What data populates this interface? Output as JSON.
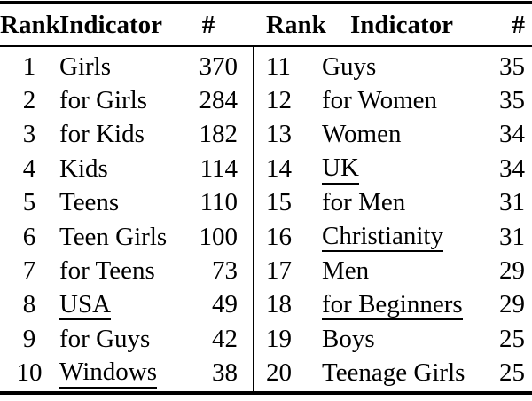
{
  "colors": {
    "text": "#000000",
    "background": "#ffffff",
    "rule": "#000000"
  },
  "header": {
    "rank": "Rank",
    "indicator": "Indicator",
    "count": "#"
  },
  "left_rows": [
    {
      "rank": "1",
      "indicator": "Girls",
      "count": "370",
      "underline": false
    },
    {
      "rank": "2",
      "indicator": "for Girls",
      "count": "284",
      "underline": false
    },
    {
      "rank": "3",
      "indicator": "for Kids",
      "count": "182",
      "underline": false
    },
    {
      "rank": "4",
      "indicator": "Kids",
      "count": "114",
      "underline": false
    },
    {
      "rank": "5",
      "indicator": "Teens",
      "count": "110",
      "underline": false
    },
    {
      "rank": "6",
      "indicator": "Teen Girls",
      "count": "100",
      "underline": false
    },
    {
      "rank": "7",
      "indicator": "for Teens",
      "count": "73",
      "underline": false
    },
    {
      "rank": "8",
      "indicator": "USA",
      "count": "49",
      "underline": true
    },
    {
      "rank": "9",
      "indicator": "for Guys",
      "count": "42",
      "underline": false
    },
    {
      "rank": "10",
      "indicator": "Windows",
      "count": "38",
      "underline": true
    }
  ],
  "right_rows": [
    {
      "rank": "11",
      "indicator": "Guys",
      "count": "35",
      "underline": false
    },
    {
      "rank": "12",
      "indicator": "for Women",
      "count": "35",
      "underline": false
    },
    {
      "rank": "13",
      "indicator": "Women",
      "count": "34",
      "underline": false
    },
    {
      "rank": "14",
      "indicator": "UK",
      "count": "34",
      "underline": true
    },
    {
      "rank": "15",
      "indicator": "for Men",
      "count": "31",
      "underline": false
    },
    {
      "rank": "16",
      "indicator": "Christianity",
      "count": "31",
      "underline": true
    },
    {
      "rank": "17",
      "indicator": "Men",
      "count": "29",
      "underline": false
    },
    {
      "rank": "18",
      "indicator": "for Beginners",
      "count": "29",
      "underline": true
    },
    {
      "rank": "19",
      "indicator": "Boys",
      "count": "25",
      "underline": false
    },
    {
      "rank": "20",
      "indicator": "Teenage Girls",
      "count": "25",
      "underline": false
    }
  ]
}
